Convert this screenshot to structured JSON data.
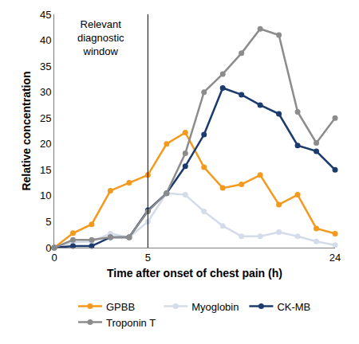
{
  "chart_data": {
    "type": "line",
    "x_label": "Time after onset of chest pain (h)",
    "y_label": "Relative concentration",
    "categories": [
      "0",
      null,
      null,
      null,
      null,
      "5",
      null,
      null,
      null,
      null,
      null,
      null,
      null,
      null,
      null,
      "24"
    ],
    "series": [
      {
        "name": "GPBB",
        "color": "#f39a1e",
        "values": [
          0,
          2.8,
          4.5,
          11,
          12.5,
          14,
          20,
          22.2,
          15.5,
          11.5,
          12.2,
          14,
          8.3,
          10.2,
          3.7,
          2.7
        ]
      },
      {
        "name": "Myoglobin",
        "color": "#d3dce8",
        "values": [
          0,
          1,
          1.2,
          2.7,
          2,
          5,
          10.5,
          10.2,
          7,
          4.2,
          2.2,
          2.2,
          3,
          2.2,
          1.2,
          0.5
        ]
      },
      {
        "name": "CK-MB",
        "color": "#1b3a6e",
        "values": [
          0,
          0.3,
          0.3,
          2,
          2,
          7.2,
          10.5,
          15.7,
          21.8,
          30.8,
          29.5,
          27.5,
          25.8,
          19.7,
          18.6,
          15
        ]
      },
      {
        "name": "Troponin T",
        "color": "#8c8c8c",
        "values": [
          0,
          1.5,
          1.5,
          2,
          2,
          7,
          10.5,
          18.2,
          30,
          33.5,
          37.5,
          42.2,
          41,
          26.2,
          20.2,
          25
        ]
      }
    ],
    "ylim": [
      0,
      45
    ],
    "yticks": [
      0,
      5,
      10,
      15,
      20,
      25,
      30,
      35,
      40,
      45
    ],
    "annotations": [
      {
        "text": "Relevant diagnostic window",
        "x": "5"
      }
    ],
    "grid": false,
    "legend": "bottom",
    "marker": "circle",
    "line_style": "solid"
  }
}
